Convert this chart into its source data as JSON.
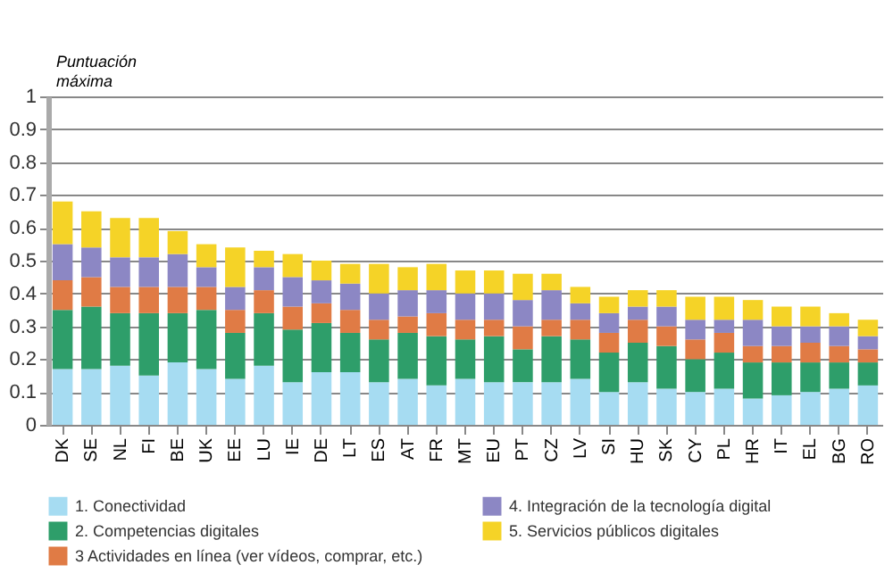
{
  "chart_data": {
    "type": "bar",
    "stacked": true,
    "ylabel": "Puntuación máxima",
    "categories": [
      "DK",
      "SE",
      "NL",
      "FI",
      "BE",
      "UK",
      "EE",
      "LU",
      "IE",
      "DE",
      "LT",
      "ES",
      "AT",
      "FR",
      "MT",
      "EU",
      "PT",
      "CZ",
      "LV",
      "SI",
      "HU",
      "SK",
      "CY",
      "PL",
      "HR",
      "IT",
      "EL",
      "BG",
      "RO"
    ],
    "series": [
      {
        "name": "1. Conectividad",
        "color": "#a6dcf2",
        "values": [
          0.17,
          0.17,
          0.18,
          0.15,
          0.19,
          0.17,
          0.14,
          0.18,
          0.13,
          0.16,
          0.16,
          0.13,
          0.14,
          0.12,
          0.14,
          0.13,
          0.13,
          0.13,
          0.14,
          0.1,
          0.13,
          0.11,
          0.1,
          0.11,
          0.08,
          0.09,
          0.1,
          0.11,
          0.12
        ]
      },
      {
        "name": "2. Competencias digitales",
        "color": "#2e9e6a",
        "values": [
          0.18,
          0.19,
          0.16,
          0.19,
          0.15,
          0.18,
          0.14,
          0.16,
          0.16,
          0.15,
          0.12,
          0.13,
          0.14,
          0.15,
          0.12,
          0.14,
          0.1,
          0.14,
          0.12,
          0.12,
          0.12,
          0.13,
          0.1,
          0.11,
          0.11,
          0.1,
          0.09,
          0.08,
          0.07
        ]
      },
      {
        "name": "3  Actividades en línea (ver vídeos, comprar, etc.)",
        "color": "#e07b45",
        "values": [
          0.09,
          0.09,
          0.08,
          0.08,
          0.08,
          0.07,
          0.07,
          0.07,
          0.07,
          0.06,
          0.07,
          0.06,
          0.05,
          0.07,
          0.06,
          0.05,
          0.07,
          0.05,
          0.06,
          0.06,
          0.07,
          0.06,
          0.06,
          0.06,
          0.05,
          0.05,
          0.06,
          0.05,
          0.04
        ]
      },
      {
        "name": "4. Integración de la tecnología digital",
        "color": "#8c87c4",
        "values": [
          0.11,
          0.09,
          0.09,
          0.09,
          0.1,
          0.06,
          0.07,
          0.07,
          0.09,
          0.07,
          0.08,
          0.08,
          0.08,
          0.07,
          0.08,
          0.08,
          0.08,
          0.09,
          0.05,
          0.06,
          0.04,
          0.06,
          0.06,
          0.04,
          0.08,
          0.06,
          0.05,
          0.06,
          0.04
        ]
      },
      {
        "name": "5. Servicios públicos digitales",
        "color": "#f5d327",
        "values": [
          0.13,
          0.11,
          0.12,
          0.12,
          0.07,
          0.07,
          0.12,
          0.05,
          0.07,
          0.06,
          0.06,
          0.09,
          0.07,
          0.08,
          0.07,
          0.07,
          0.08,
          0.05,
          0.05,
          0.05,
          0.05,
          0.05,
          0.07,
          0.07,
          0.06,
          0.06,
          0.06,
          0.04,
          0.05
        ]
      }
    ],
    "ylim": [
      0,
      1
    ],
    "yticks": [
      0,
      0.1,
      0.2,
      0.3,
      0.4,
      0.5,
      0.6,
      0.7,
      0.8,
      0.9,
      1
    ],
    "grid": "y",
    "legend": "bottom"
  }
}
